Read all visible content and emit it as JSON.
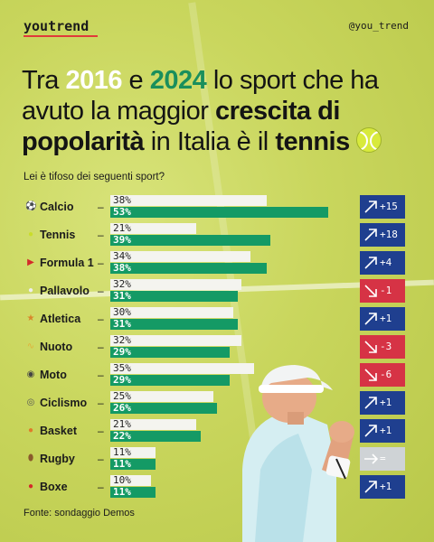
{
  "brand": "youtrend",
  "handle": "@you_trend",
  "title": {
    "part1": "Tra ",
    "year1": "2016",
    "part2": " e ",
    "year2": "2024",
    "part3": " lo sport che ha avuto la maggior ",
    "bold1": "crescita di popolarità",
    "part4": " in Italia è il ",
    "bold2": "tennis"
  },
  "question": "Lei è tifoso dei seguenti sport?",
  "source": "Fonte: sondaggio Demos",
  "colors": {
    "bar_2016": "#f4f4ef",
    "bar_2024": "#149a65",
    "up": "#1f3f8f",
    "down": "#d63345",
    "flat": "#cfd3d6"
  },
  "chart_data": {
    "type": "bar",
    "title": "",
    "xlabel": "",
    "ylabel": "",
    "xlim": [
      0,
      55
    ],
    "categories": [
      "Calcio",
      "Tennis",
      "Formula 1",
      "Pallavolo",
      "Atletica",
      "Nuoto",
      "Moto",
      "Ciclismo",
      "Basket",
      "Rugby",
      "Boxe"
    ],
    "icons": [
      "soccer-ball-icon",
      "tennis-ball-icon",
      "race-car-icon",
      "volleyball-icon",
      "runner-icon",
      "swimmer-icon",
      "motorcycle-icon",
      "bicycle-icon",
      "basketball-icon",
      "rugby-ball-icon",
      "boxing-glove-icon"
    ],
    "series": [
      {
        "values": [
          38,
          21,
          34,
          32,
          30,
          32,
          35,
          25,
          21,
          11,
          10
        ],
        "labels": [
          "38%",
          "21%",
          "34%",
          "32%",
          "30%",
          "32%",
          "35%",
          "25%",
          "21%",
          "11%",
          "10%"
        ]
      },
      {
        "values": [
          53,
          39,
          38,
          31,
          31,
          29,
          29,
          26,
          22,
          11,
          11
        ],
        "labels": [
          "53%",
          "39%",
          "38%",
          "31%",
          "31%",
          "29%",
          "29%",
          "26%",
          "22%",
          "11%",
          "11%"
        ]
      }
    ],
    "changes": [
      "+15",
      "+18",
      "+4",
      "-1",
      "+1",
      "-3",
      "-6",
      "+1",
      "+1",
      "=",
      "+1"
    ],
    "change_direction": [
      "up",
      "up",
      "up",
      "down",
      "up",
      "down",
      "down",
      "up",
      "up",
      "flat",
      "up"
    ]
  }
}
